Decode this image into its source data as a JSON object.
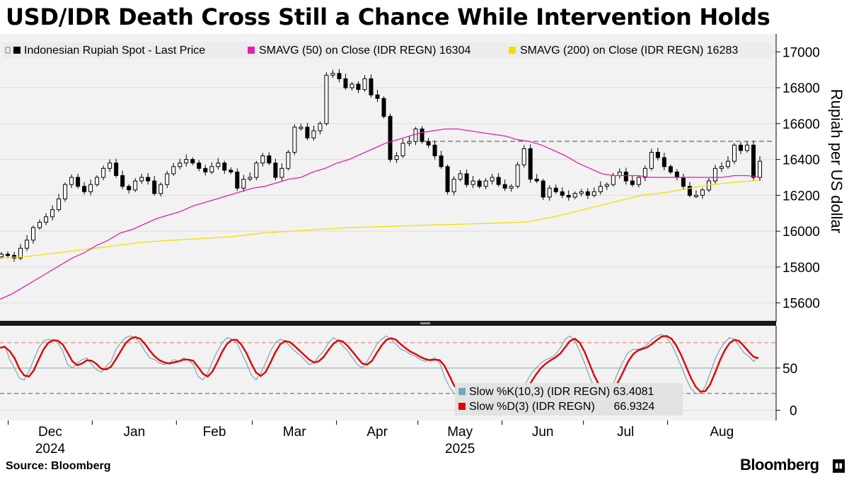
{
  "title": "USD/IDR Death Cross Still a Chance While Intervention Holds",
  "source": "Source: Bloomberg",
  "brand": "Bloomberg",
  "legend": {
    "price": "Indonesian Rupiah Spot - Last Price",
    "sma50_label": "SMAVG (50)  on Close (IDR REGN) 16304",
    "sma200_label": "SMAVG (200)  on Close (IDR REGN) 16283",
    "slowk_label": "Slow %K(10,3) (IDR REGN) 63.4081",
    "slowd_label": "Slow %D(3) (IDR REGN)      66.9324"
  },
  "colors": {
    "candle": "#000000",
    "sma50": "#e020b0",
    "sma200": "#f0e000",
    "slowk": "#7aa6b8",
    "slowd": "#e00000",
    "ref80": "#e87060",
    "ref50": "#8aa4b0",
    "ref20": "#208030",
    "resistance": "#444444"
  },
  "chart_data": {
    "type": "candlestick",
    "yaxis_label": "Rupiah per US dollar",
    "ylim": [
      15500,
      17100
    ],
    "y_ticks": [
      15600,
      15800,
      16000,
      16200,
      16400,
      16600,
      16800,
      17000
    ],
    "x_labels": [
      {
        "label": "Dec",
        "sub": "2024",
        "day": 0
      },
      {
        "label": "Jan",
        "sub": "",
        "day": 31
      },
      {
        "label": "Feb",
        "sub": "",
        "day": 62
      },
      {
        "label": "Mar",
        "sub": "",
        "day": 90
      },
      {
        "label": "Apr",
        "sub": "",
        "day": 121
      },
      {
        "label": "May",
        "sub": "2025",
        "day": 151
      },
      {
        "label": "Jun",
        "sub": "",
        "day": 182
      },
      {
        "label": "Jul",
        "sub": "",
        "day": 212
      },
      {
        "label": "Aug",
        "sub": "",
        "day": 243
      }
    ],
    "x_range_days": [
      -3,
      283
    ],
    "price_close": [
      15872,
      15865,
      15850,
      15905,
      15950,
      16020,
      16050,
      16080,
      16120,
      16180,
      16260,
      16300,
      16250,
      16220,
      16260,
      16300,
      16350,
      16380,
      16310,
      16250,
      16230,
      16280,
      16300,
      16280,
      16210,
      16260,
      16320,
      16360,
      16380,
      16400,
      16380,
      16350,
      16330,
      16360,
      16380,
      16340,
      16330,
      16240,
      16290,
      16300,
      16380,
      16420,
      16380,
      16300,
      16350,
      16440,
      16580,
      16580,
      16520,
      16560,
      16600,
      16870,
      16880,
      16850,
      16800,
      16820,
      16790,
      16850,
      16760,
      16740,
      16640,
      16400,
      16420,
      16490,
      16500,
      16570,
      16500,
      16480,
      16420,
      16360,
      16220,
      16290,
      16320,
      16260,
      16280,
      16250,
      16280,
      16300,
      16260,
      16240,
      16250,
      16370,
      16460,
      16290,
      16280,
      16190,
      16240,
      16220,
      16200,
      16190,
      16210,
      16220,
      16200,
      16220,
      16250,
      16260,
      16310,
      16330,
      16280,
      16260,
      16300,
      16350,
      16440,
      16410,
      16360,
      16330,
      16300,
      16250,
      16200,
      16200,
      16230,
      16280,
      16350,
      16360,
      16390,
      16480,
      16450,
      16480,
      16300,
      16390
    ],
    "sma50": [
      15620,
      15650,
      15690,
      15730,
      15770,
      15810,
      15850,
      15880,
      15920,
      15950,
      15990,
      16010,
      16040,
      16070,
      16090,
      16110,
      16140,
      16160,
      16180,
      16200,
      16220,
      16240,
      16250,
      16270,
      16290,
      16300,
      16330,
      16350,
      16380,
      16400,
      16430,
      16460,
      16490,
      16510,
      16530,
      16550,
      16560,
      16570,
      16570,
      16560,
      16550,
      16540,
      16530,
      16510,
      16500,
      16480,
      16450,
      16420,
      16380,
      16350,
      16320,
      16310,
      16310,
      16310,
      16300,
      16300,
      16300,
      16300,
      16300,
      16300,
      16300,
      16310,
      16310,
      16304
    ],
    "sma200": [
      15850,
      15860,
      15880,
      15900,
      15920,
      15940,
      15950,
      15960,
      15970,
      15990,
      16000,
      16010,
      16020,
      16025,
      16030,
      16035,
      16040,
      16045,
      16050,
      16080,
      16120,
      16160,
      16200,
      16220,
      16250,
      16270,
      16283
    ],
    "oscillator": {
      "ylim": [
        -12,
        100
      ],
      "y_ticks": [
        0,
        50
      ],
      "levels": [
        20,
        50,
        80
      ],
      "slow_k_latest": 63.4081,
      "slow_d_latest": 66.9324,
      "slow_k": [
        74,
        76,
        60,
        50,
        38,
        36,
        46,
        60,
        74,
        82,
        84,
        83,
        80,
        70,
        54,
        50,
        56,
        60,
        62,
        54,
        48,
        45,
        52,
        58,
        72,
        80,
        86,
        88,
        86,
        80,
        70,
        62,
        60,
        56,
        54,
        56,
        60,
        58,
        62,
        60,
        54,
        40,
        36,
        44,
        58,
        70,
        80,
        86,
        84,
        80,
        68,
        56,
        42,
        36,
        44,
        56,
        70,
        80,
        84,
        82,
        76,
        70,
        66,
        60,
        54,
        56,
        64,
        70,
        80,
        86,
        82,
        76,
        70,
        62,
        54,
        50,
        58,
        68,
        78,
        84,
        88,
        84,
        78,
        72,
        70,
        66,
        64,
        60,
        58,
        60,
        62,
        56,
        40,
        28,
        20,
        20,
        22,
        24,
        26,
        24,
        22,
        20,
        20,
        18,
        16,
        14,
        14,
        16,
        24,
        34,
        44,
        50,
        56,
        60,
        62,
        66,
        74,
        84,
        88,
        82,
        70,
        56,
        40,
        28,
        22,
        20,
        24,
        32,
        46,
        58,
        68,
        72,
        72,
        74,
        78,
        84,
        88,
        90,
        86,
        78,
        66,
        52,
        38,
        26,
        20,
        20,
        28,
        44,
        60,
        72,
        80,
        86,
        84,
        76,
        68,
        64,
        58,
        63
      ]
    }
  }
}
